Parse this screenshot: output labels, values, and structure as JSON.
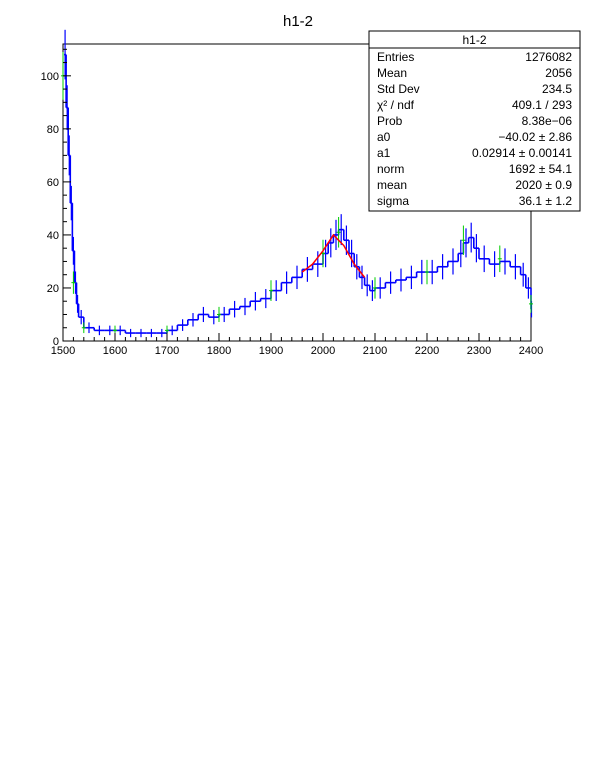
{
  "chart_data": {
    "type": "histogram",
    "title": "h1-2",
    "xlabel": "",
    "ylabel": "",
    "xlim": [
      1500,
      2400
    ],
    "ylim": [
      0,
      112
    ],
    "x_ticks": [
      "1500",
      "1600",
      "1700",
      "1800",
      "1900",
      "2000",
      "2100",
      "2200",
      "2300",
      "2400"
    ],
    "y_ticks": [
      "0",
      "20",
      "40",
      "60",
      "80",
      "100"
    ],
    "grid": false,
    "series": [
      {
        "name": "",
        "color": "#0000ff",
        "style": "step-with-error-bars",
        "x": [
          1502,
          1506,
          1510,
          1514,
          1518,
          1522,
          1526,
          1530,
          1540,
          1560,
          1580,
          1600,
          1620,
          1640,
          1660,
          1680,
          1700,
          1720,
          1740,
          1760,
          1780,
          1800,
          1820,
          1840,
          1860,
          1880,
          1900,
          1920,
          1940,
          1960,
          1980,
          2000,
          2010,
          2020,
          2030,
          2040,
          2050,
          2060,
          2070,
          2080,
          2090,
          2100,
          2120,
          2140,
          2160,
          2180,
          2200,
          2220,
          2240,
          2260,
          2270,
          2280,
          2290,
          2300,
          2320,
          2340,
          2360,
          2380,
          2390,
          2400
        ],
        "y": [
          108,
          88,
          70,
          52,
          34,
          22,
          14,
          9,
          5,
          4,
          4,
          4,
          3,
          3,
          3,
          3,
          4,
          6,
          8,
          10,
          9,
          10,
          12,
          13,
          15,
          16,
          19,
          22,
          24,
          27,
          29,
          33,
          37,
          40,
          42,
          38,
          33,
          28,
          24,
          21,
          19,
          20,
          22,
          23,
          24,
          26,
          26,
          28,
          30,
          33,
          37,
          39,
          35,
          31,
          29,
          30,
          28,
          25,
          20,
          12
        ]
      },
      {
        "name": "",
        "color": "#00cc00",
        "style": "error-bars",
        "x": [
          1500,
          1520,
          1540,
          1600,
          1700,
          1800,
          1900,
          2000,
          2030,
          2100,
          2200,
          2270,
          2340,
          2400
        ],
        "y": [
          100,
          22,
          5,
          4,
          4,
          10,
          19,
          33,
          41,
          20,
          26,
          38,
          31,
          14
        ]
      },
      {
        "name": "",
        "color": "#ff0000",
        "style": "fit-line",
        "x": [
          1960,
          1980,
          2000,
          2020,
          2040,
          2060,
          2080
        ],
        "y": [
          26,
          29,
          34,
          40,
          36,
          29,
          24
        ]
      }
    ],
    "stats_box": {
      "title": "h1-2",
      "rows": [
        {
          "label": "Entries",
          "value": "1276082"
        },
        {
          "label": "Mean",
          "value": "2056"
        },
        {
          "label": "Std Dev",
          "value": "234.5"
        },
        {
          "label": "χ² / ndf",
          "value": "409.1 / 293"
        },
        {
          "label": "Prob",
          "value": "8.38e−06"
        },
        {
          "label": "a0",
          "value": "−40.02 ± 2.86"
        },
        {
          "label": "a1",
          "value": "0.02914 ± 0.00141"
        },
        {
          "label": "norm",
          "value": "1692 ± 54.1"
        },
        {
          "label": "mean",
          "value": "2020 ± 0.9"
        },
        {
          "label": "sigma",
          "value": "36.1 ± 1.2"
        }
      ]
    }
  }
}
